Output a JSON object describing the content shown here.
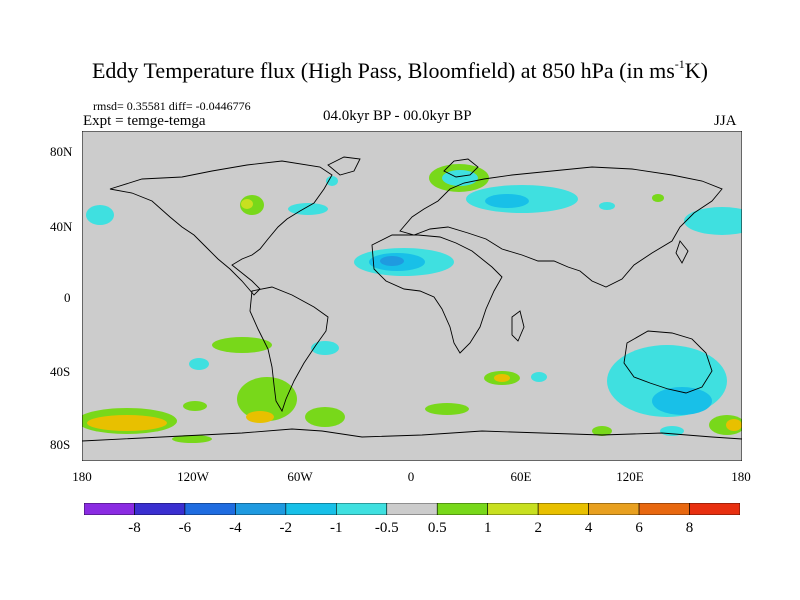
{
  "title": {
    "main": "Eddy Temperature flux (High Pass, Bloomfield) at 850 hPa (in ms",
    "sup": "-1",
    "tail": "K)"
  },
  "subtitle": {
    "stats": "rmsd= 0.35581  diff= -0.0446776",
    "experiment": "Expt = temge-temga",
    "period": "04.0kyr BP - 00.0kyr BP",
    "season": "JJA"
  },
  "axes": {
    "lat_labels": [
      "80N",
      "40N",
      "0",
      "40S",
      "80S"
    ],
    "lon_labels": [
      "180",
      "120W",
      "60W",
      "0",
      "60E",
      "120E",
      "180"
    ]
  },
  "colorbar": {
    "colors": [
      "#8a2be2",
      "#3a2fd0",
      "#1f6ce0",
      "#1f9ae0",
      "#18c0e8",
      "#3fe0e0",
      "#cccccc",
      "#78d81a",
      "#c8e020",
      "#e8c000",
      "#e8a020",
      "#e86810",
      "#e83010"
    ],
    "labels": [
      "-8",
      "-6",
      "-4",
      "-2",
      "-1",
      "-0.5",
      "0.5",
      "1",
      "2",
      "4",
      "6",
      "8"
    ]
  },
  "colors": {
    "land_ocean_bg": "#cccccc",
    "coastline": "#000000"
  }
}
